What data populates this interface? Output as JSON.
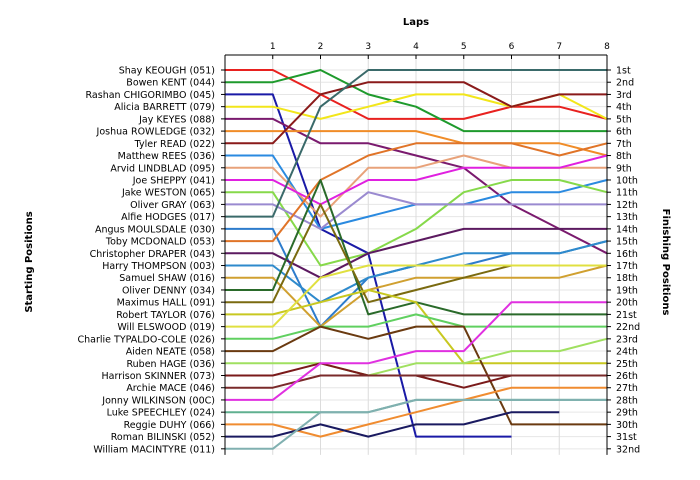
{
  "chart_data": {
    "type": "line",
    "title": "",
    "xlabel": "Laps",
    "ylabel_left": "Starting Positions",
    "ylabel_right": "Finishing Positions",
    "laps": [
      1,
      2,
      3,
      4,
      5,
      6,
      7,
      8
    ],
    "grid": true,
    "position_labels": [
      "1st",
      "2nd",
      "3rd",
      "4th",
      "5th",
      "6th",
      "7th",
      "8th",
      "9th",
      "10th",
      "11th",
      "12th",
      "13th",
      "14th",
      "15th",
      "16th",
      "17th",
      "18th",
      "19th",
      "20th",
      "21st",
      "22nd",
      "23rd",
      "24th",
      "25th",
      "26th",
      "27th",
      "28th",
      "29th",
      "30th",
      "31st",
      "32nd"
    ],
    "series": [
      {
        "name": "Shay KEOUGH (051)",
        "color": "#e8211f",
        "positions": [
          1,
          3,
          5,
          5,
          5,
          4,
          4,
          5
        ]
      },
      {
        "name": "Bowen KENT (044)",
        "color": "#1e9a2c",
        "positions": [
          2,
          1,
          3,
          4,
          6,
          6,
          6,
          6
        ]
      },
      {
        "name": "Rashan CHIGORIMBO (045)",
        "color": "#1a1aa6",
        "positions": [
          3,
          14,
          16,
          31,
          31,
          31,
          null,
          null
        ]
      },
      {
        "name": "Alicia BARRETT (079)",
        "color": "#f2e61a",
        "positions": [
          4,
          5,
          4,
          3,
          3,
          4,
          3,
          5
        ]
      },
      {
        "name": "Jay KEYES (088)",
        "color": "#7a1a6e",
        "positions": [
          5,
          7,
          7,
          8,
          9,
          12,
          14,
          16
        ]
      },
      {
        "name": "Joshua ROWLEDGE (032)",
        "color": "#f08c28",
        "positions": [
          6,
          6,
          6,
          6,
          7,
          7,
          7,
          8
        ]
      },
      {
        "name": "Tyler READ (022)",
        "color": "#8a1a1a",
        "positions": [
          7,
          3,
          2,
          2,
          2,
          4,
          3,
          3
        ]
      },
      {
        "name": "Matthew REES (036)",
        "color": "#2a8ae0",
        "positions": [
          8,
          14,
          13,
          12,
          12,
          11,
          11,
          10
        ]
      },
      {
        "name": "Arvid LINDBLAD (095)",
        "color": "#e8a27a",
        "positions": [
          9,
          13,
          9,
          9,
          8,
          9,
          9,
          9
        ]
      },
      {
        "name": "Joe SHEPPY (041)",
        "color": "#e020e0",
        "positions": [
          10,
          12,
          10,
          10,
          9,
          9,
          9,
          8
        ]
      },
      {
        "name": "Jake WESTON (065)",
        "color": "#86d94a",
        "positions": [
          11,
          17,
          16,
          14,
          11,
          10,
          10,
          11
        ]
      },
      {
        "name": "Oliver GRAY (063)",
        "color": "#9a8ad0",
        "positions": [
          12,
          14,
          11,
          12,
          12,
          12,
          12,
          12
        ]
      },
      {
        "name": "Alfie HODGES (017)",
        "color": "#3a6a6a",
        "positions": [
          13,
          4,
          1,
          1,
          1,
          1,
          1,
          1
        ]
      },
      {
        "name": "Angus MOULSDALE (030)",
        "color": "#2d7ccc",
        "positions": [
          14,
          22,
          18,
          17,
          17,
          16,
          16,
          15
        ]
      },
      {
        "name": "Toby MCDONALD (053)",
        "color": "#e07428",
        "positions": [
          15,
          10,
          8,
          7,
          7,
          7,
          8,
          7
        ]
      },
      {
        "name": "Christopher DRAPER (043)",
        "color": "#5c1a60",
        "positions": [
          16,
          18,
          16,
          15,
          14,
          14,
          14,
          14
        ]
      },
      {
        "name": "Harry THOMPSON (003)",
        "color": "#2e8acc",
        "positions": [
          17,
          20,
          18,
          17,
          16,
          16,
          16,
          15
        ]
      },
      {
        "name": "Samuel SHAW (016)",
        "color": "#d0a030",
        "positions": [
          18,
          22,
          19,
          18,
          18,
          18,
          18,
          17
        ]
      },
      {
        "name": "Oliver DENNY (034)",
        "color": "#2a6a2a",
        "positions": [
          19,
          10,
          21,
          20,
          21,
          21,
          21,
          21
        ]
      },
      {
        "name": "Maximus HALL (091)",
        "color": "#7a6a10",
        "positions": [
          20,
          12,
          20,
          19,
          18,
          17,
          17,
          17
        ]
      },
      {
        "name": "Robert TAYLOR (076)",
        "color": "#c8c820",
        "positions": [
          21,
          20,
          19,
          20,
          25,
          25,
          25,
          25
        ]
      },
      {
        "name": "Will ELSWOOD (019)",
        "color": "#e0e040",
        "positions": [
          22,
          18,
          17,
          17,
          17,
          17,
          17,
          17
        ]
      },
      {
        "name": "Charlie TYPALDO-COLE (026)",
        "color": "#60d060",
        "positions": [
          23,
          22,
          22,
          21,
          22,
          22,
          22,
          22
        ]
      },
      {
        "name": "Aiden NEATE (058)",
        "color": "#6a3a10",
        "positions": [
          24,
          22,
          23,
          22,
          22,
          30,
          30,
          30
        ]
      },
      {
        "name": "Ruben HAGE (036)",
        "color": "#a0e060",
        "positions": [
          25,
          25,
          26,
          25,
          25,
          24,
          24,
          23
        ]
      },
      {
        "name": "Harrison SKINNER (073)",
        "color": "#7a1a1a",
        "positions": [
          26,
          25,
          26,
          26,
          27,
          26,
          26,
          26
        ]
      },
      {
        "name": "Archie MACE (046)",
        "color": "#7a2a2a",
        "positions": [
          27,
          26,
          26,
          26,
          26,
          26,
          26,
          26
        ]
      },
      {
        "name": "Jonny WILKINSON (00C)",
        "color": "#e030e0",
        "positions": [
          28,
          25,
          25,
          24,
          24,
          20,
          20,
          20
        ]
      },
      {
        "name": "Luke SPEECHLEY (024)",
        "color": "#60b090",
        "positions": [
          29,
          29,
          29,
          28,
          28,
          28,
          28,
          28
        ]
      },
      {
        "name": "Reggie DUHY (066)",
        "color": "#f08c30",
        "positions": [
          30,
          31,
          30,
          29,
          28,
          27,
          27,
          27
        ]
      },
      {
        "name": "Roman BILINSKI (052)",
        "color": "#1a1a60",
        "positions": [
          31,
          30,
          31,
          30,
          30,
          29,
          29,
          null
        ]
      },
      {
        "name": "William MACINTYRE (011)",
        "color": "#80b0b0",
        "positions": [
          32,
          29,
          29,
          28,
          28,
          28,
          28,
          28
        ]
      }
    ]
  }
}
